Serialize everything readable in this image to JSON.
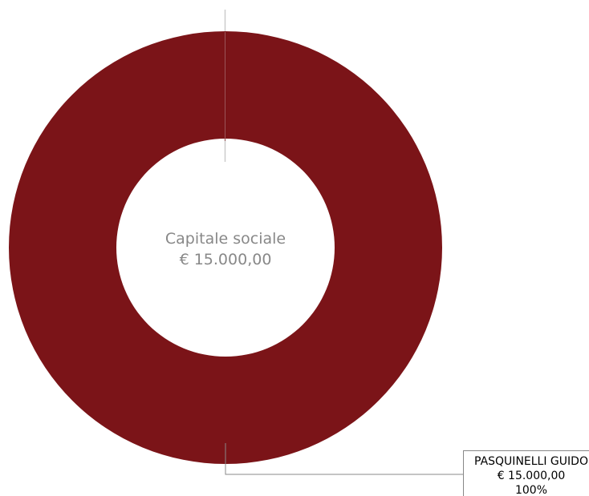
{
  "chart_data": {
    "type": "pie",
    "variant": "donut",
    "title": "Capitale sociale",
    "total_label": "€ 15.000,00",
    "slices": [
      {
        "name": "PASQUINELLI GUIDO",
        "amount_label": "€ 15.000,00",
        "percent_label": "100%",
        "value": 15000,
        "percent": 100,
        "color": "#7b1418"
      }
    ],
    "legend": "none"
  }
}
